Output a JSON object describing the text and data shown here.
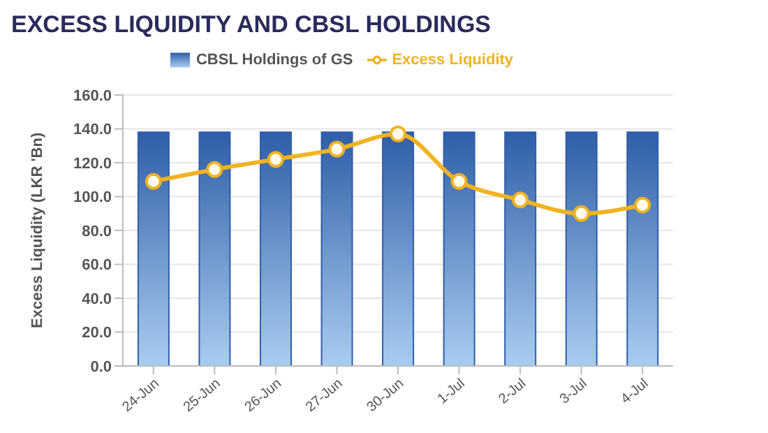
{
  "chart_data": {
    "type": "bar",
    "title": "EXCESS LIQUIDITY AND CBSL HOLDINGS",
    "ylabel": "Excess Liquidity (LKR 'Bn)",
    "categories": [
      "24-Jun",
      "25-Jun",
      "26-Jun",
      "27-Jun",
      "30-Jun",
      "1-Jul",
      "2-Jul",
      "3-Jul",
      "4-Jul"
    ],
    "series": [
      {
        "name": "CBSL Holdings of GS",
        "color": "#2f5ea8",
        "values": [
          138,
          138,
          138,
          138,
          138,
          138,
          138,
          138,
          138
        ]
      },
      {
        "name": "Excess Liquidity",
        "type": "line",
        "color": "#f0b323",
        "values": [
          109,
          116,
          122,
          128,
          137,
          109,
          98,
          90,
          95
        ]
      }
    ],
    "ylim": [
      0,
      160
    ],
    "yticks": [
      {
        "value": 0,
        "label": "0.0"
      },
      {
        "value": 20,
        "label": "20.0"
      },
      {
        "value": 40,
        "label": "40.0"
      },
      {
        "value": 60,
        "label": "60.0"
      },
      {
        "value": 80,
        "label": "80.0"
      },
      {
        "value": 100,
        "label": "100.0"
      },
      {
        "value": 120,
        "label": "120.0"
      },
      {
        "value": 140,
        "label": "140.0"
      },
      {
        "value": 160,
        "label": "160.0"
      }
    ],
    "grid": "y",
    "legend": "top",
    "marker": "circle"
  }
}
